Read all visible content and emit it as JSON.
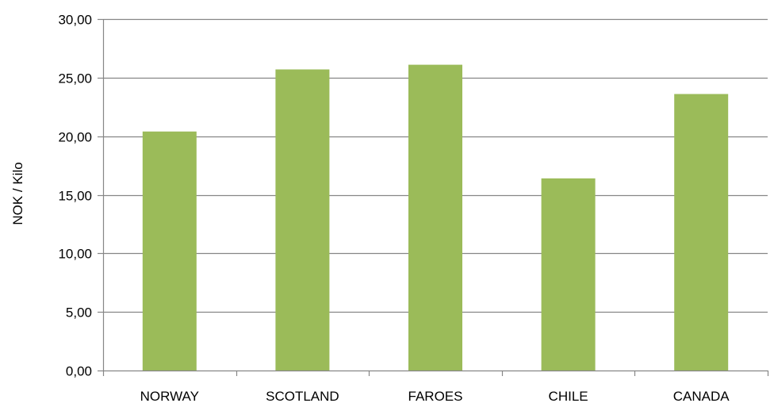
{
  "chart_data": {
    "type": "bar",
    "title": "",
    "xlabel": "",
    "ylabel": "NOK / Kilo",
    "categories": [
      "NORWAY",
      "SCOTLAND",
      "FAROES",
      "CHILE",
      "CANADA"
    ],
    "values": [
      20.4,
      25.7,
      26.1,
      16.4,
      23.6
    ],
    "ylim": [
      0,
      30
    ],
    "yticks": [
      0,
      5,
      10,
      15,
      20,
      25,
      30
    ],
    "ytick_labels": [
      "0,00",
      "5,00",
      "10,00",
      "15,00",
      "20,00",
      "25,00",
      "30,00"
    ],
    "grid": true,
    "legend": "none",
    "colors": {
      "bar": "#9BBB59",
      "gridline": "#868686",
      "axis": "#868686"
    }
  }
}
